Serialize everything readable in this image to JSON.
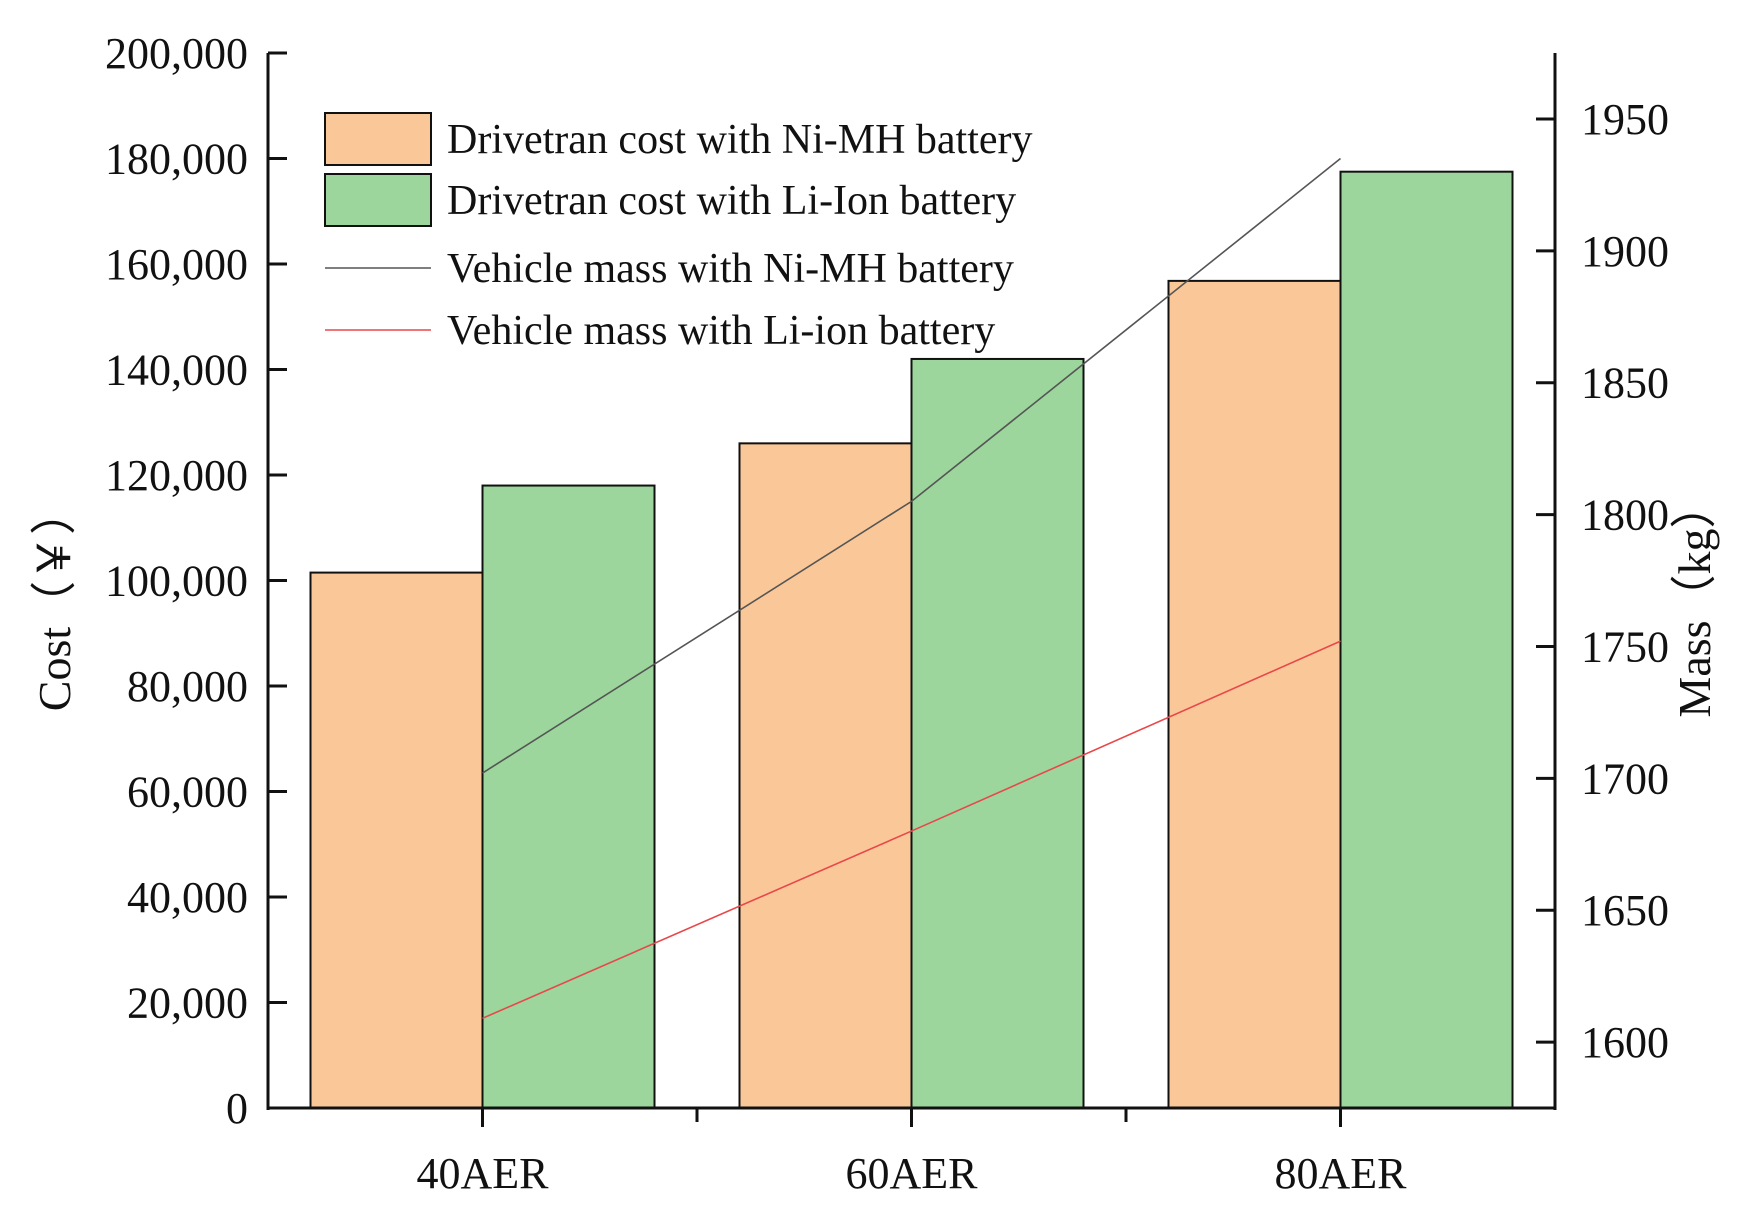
{
  "chart_data": {
    "type": "bar",
    "title": "",
    "categories": [
      "40AER",
      "60AER",
      "80AER"
    ],
    "series": [
      {
        "name": "Drivetran cost with Ni-MH battery",
        "kind": "bar",
        "axis": "left",
        "color": "#fac898",
        "values": [
          101500,
          126000,
          156800
        ]
      },
      {
        "name": "Drivetran cost with Li-Ion battery",
        "kind": "bar",
        "axis": "left",
        "color": "#9cd69c",
        "values": [
          118000,
          142000,
          177500
        ]
      },
      {
        "name": "Vehicle mass with Ni-MH battery",
        "kind": "line",
        "axis": "right",
        "color": "#555555",
        "values": [
          1702,
          1805,
          1935
        ]
      },
      {
        "name": "Vehicle mass with Li-ion battery",
        "kind": "line",
        "axis": "right",
        "color": "#e8484b",
        "values": [
          1609,
          1680,
          1752
        ]
      }
    ],
    "ylabel": "Cost（￥）",
    "ylim": [
      0,
      200000
    ],
    "yticks": [
      0,
      20000,
      40000,
      60000,
      80000,
      100000,
      120000,
      140000,
      160000,
      180000,
      200000
    ],
    "ytick_labels": [
      "0",
      "20,000",
      "40,000",
      "60,000",
      "80,000",
      "100,000",
      "120,000",
      "140,000",
      "160,000",
      "180,000",
      "200,000"
    ],
    "y2label": "Mass（kg）",
    "y2lim": [
      1575,
      1975
    ],
    "y2ticks": [
      1600,
      1650,
      1700,
      1750,
      1800,
      1850,
      1900,
      1950
    ],
    "y2tick_labels": [
      "1600",
      "1650",
      "1700",
      "1750",
      "1800",
      "1850",
      "1900",
      "1950"
    ],
    "xlabel": "",
    "grid": false,
    "legend_position": "top-left"
  }
}
